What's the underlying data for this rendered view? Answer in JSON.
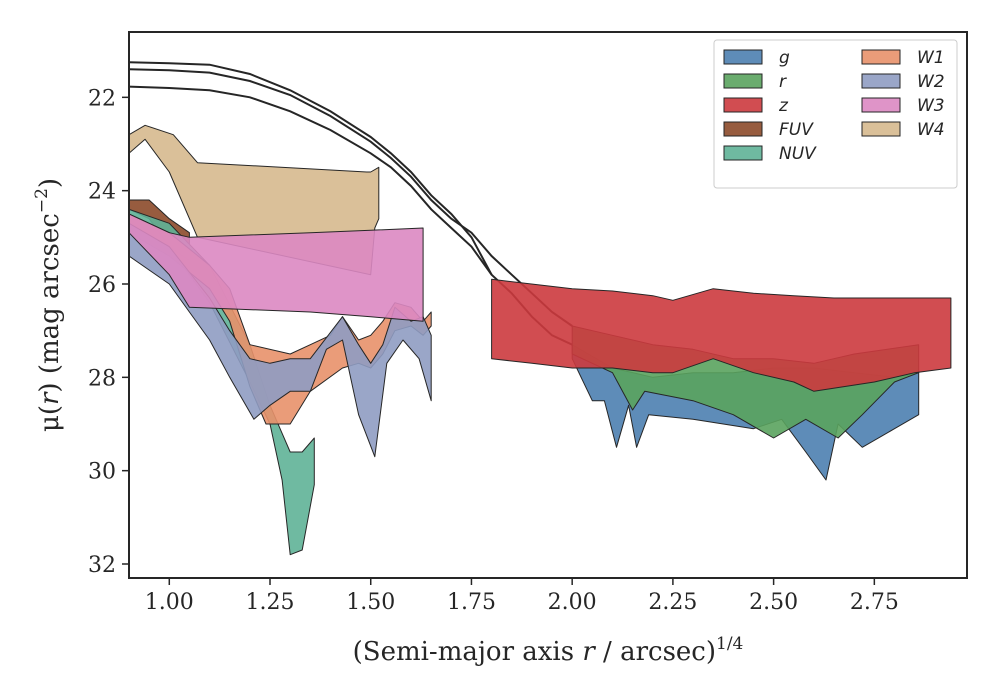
{
  "chart_data": {
    "type": "area",
    "xlabel": {
      "main": "(Semi-major axis ",
      "var": "r",
      "rest": " / arcsec)",
      "sup": "1/4"
    },
    "ylabel": {
      "pre": "μ(",
      "var": "r",
      "post": ") (mag arcsec",
      "sup": "−2",
      "end": ")"
    },
    "xlim": [
      0.9,
      2.98
    ],
    "ylim": [
      32.3,
      20.6
    ],
    "y_inverted": true,
    "xticks": [
      1.0,
      1.25,
      1.5,
      1.75,
      2.0,
      2.25,
      2.5,
      2.75
    ],
    "xtick_labels": [
      "1.00",
      "1.25",
      "1.50",
      "1.75",
      "2.00",
      "2.25",
      "2.50",
      "2.75"
    ],
    "yticks": [
      22,
      24,
      26,
      28,
      30,
      32
    ],
    "ytick_labels": [
      "22",
      "24",
      "26",
      "28",
      "30",
      "32"
    ],
    "legend_position": "top-right",
    "grid": false,
    "series": [
      {
        "name": "W4",
        "color": "#d6b98e",
        "upper": [
          [
            0.9,
            22.8
          ],
          [
            0.94,
            22.6
          ],
          [
            1.01,
            22.8
          ],
          [
            1.07,
            23.4
          ],
          [
            1.49,
            23.6
          ],
          [
            1.5,
            23.6
          ],
          [
            1.52,
            23.5
          ]
        ],
        "lower": [
          [
            0.9,
            23.2
          ],
          [
            0.94,
            22.9
          ],
          [
            1.0,
            23.6
          ],
          [
            1.07,
            25.0
          ],
          [
            1.5,
            25.8
          ],
          [
            1.51,
            24.8
          ],
          [
            1.52,
            24.6
          ]
        ]
      },
      {
        "name": "FUV",
        "color": "#8c4a2a",
        "upper": [
          [
            0.9,
            24.2
          ],
          [
            0.95,
            24.2
          ],
          [
            1.0,
            24.6
          ],
          [
            1.05,
            24.9
          ]
        ],
        "lower": [
          [
            0.9,
            24.4
          ],
          [
            0.95,
            24.6
          ],
          [
            1.0,
            25.2
          ],
          [
            1.05,
            25.5
          ]
        ]
      },
      {
        "name": "NUV",
        "color": "#5fb397",
        "upper": [
          [
            0.9,
            24.4
          ],
          [
            1.0,
            24.7
          ],
          [
            1.1,
            25.6
          ],
          [
            1.2,
            27.3
          ],
          [
            1.25,
            28.6
          ],
          [
            1.28,
            29.2
          ],
          [
            1.3,
            29.6
          ],
          [
            1.33,
            29.6
          ],
          [
            1.36,
            29.3
          ]
        ],
        "lower": [
          [
            0.9,
            24.7
          ],
          [
            1.0,
            25.2
          ],
          [
            1.1,
            26.4
          ],
          [
            1.2,
            28.1
          ],
          [
            1.25,
            29.0
          ],
          [
            1.28,
            30.2
          ],
          [
            1.3,
            31.8
          ],
          [
            1.33,
            31.7
          ],
          [
            1.36,
            30.3
          ]
        ]
      },
      {
        "name": "W1",
        "color": "#e8916a",
        "upper": [
          [
            0.9,
            24.5
          ],
          [
            1.0,
            24.9
          ],
          [
            1.1,
            25.6
          ],
          [
            1.15,
            26.1
          ],
          [
            1.2,
            27.3
          ],
          [
            1.3,
            27.5
          ],
          [
            1.35,
            27.3
          ],
          [
            1.4,
            27.1
          ],
          [
            1.43,
            26.7
          ],
          [
            1.47,
            27.2
          ],
          [
            1.5,
            27.1
          ],
          [
            1.53,
            26.8
          ],
          [
            1.56,
            26.4
          ],
          [
            1.6,
            26.5
          ],
          [
            1.63,
            26.8
          ],
          [
            1.65,
            26.6
          ]
        ],
        "lower": [
          [
            0.9,
            24.9
          ],
          [
            1.0,
            25.4
          ],
          [
            1.1,
            26.1
          ],
          [
            1.15,
            26.8
          ],
          [
            1.2,
            28.2
          ],
          [
            1.24,
            29.0
          ],
          [
            1.3,
            29.0
          ],
          [
            1.35,
            28.3
          ],
          [
            1.43,
            27.8
          ],
          [
            1.47,
            27.7
          ],
          [
            1.5,
            27.8
          ],
          [
            1.53,
            27.5
          ],
          [
            1.56,
            27.0
          ],
          [
            1.6,
            26.9
          ],
          [
            1.63,
            27.1
          ],
          [
            1.65,
            26.9
          ]
        ]
      },
      {
        "name": "W2",
        "color": "#8f9cc2",
        "upper": [
          [
            0.9,
            24.7
          ],
          [
            1.0,
            25.2
          ],
          [
            1.1,
            26.3
          ],
          [
            1.15,
            27.0
          ],
          [
            1.2,
            27.6
          ],
          [
            1.25,
            27.7
          ],
          [
            1.3,
            27.6
          ],
          [
            1.35,
            27.6
          ],
          [
            1.43,
            26.7
          ],
          [
            1.47,
            27.3
          ],
          [
            1.5,
            27.7
          ],
          [
            1.53,
            27.3
          ],
          [
            1.56,
            26.5
          ],
          [
            1.6,
            26.8
          ],
          [
            1.63,
            26.7
          ],
          [
            1.65,
            27.1
          ]
        ],
        "lower": [
          [
            0.9,
            25.4
          ],
          [
            0.95,
            25.7
          ],
          [
            1.0,
            26.0
          ],
          [
            1.05,
            26.6
          ],
          [
            1.1,
            27.2
          ],
          [
            1.15,
            28.0
          ],
          [
            1.21,
            28.9
          ],
          [
            1.25,
            28.6
          ],
          [
            1.3,
            28.3
          ],
          [
            1.35,
            28.3
          ],
          [
            1.39,
            27.4
          ],
          [
            1.43,
            27.2
          ],
          [
            1.47,
            28.8
          ],
          [
            1.51,
            29.7
          ],
          [
            1.54,
            27.7
          ],
          [
            1.58,
            27.2
          ],
          [
            1.62,
            27.6
          ],
          [
            1.65,
            28.5
          ]
        ]
      },
      {
        "name": "W3",
        "color": "#dc88c2",
        "upper": [
          [
            0.9,
            24.5
          ],
          [
            1.0,
            24.9
          ],
          [
            1.05,
            25.0
          ],
          [
            1.35,
            24.9
          ],
          [
            1.5,
            24.85
          ],
          [
            1.63,
            24.8
          ]
        ],
        "lower": [
          [
            0.9,
            24.9
          ],
          [
            1.0,
            25.8
          ],
          [
            1.05,
            26.5
          ],
          [
            1.35,
            26.6
          ],
          [
            1.5,
            26.7
          ],
          [
            1.63,
            26.8
          ]
        ]
      },
      {
        "name": "g",
        "color": "#4c7fb0",
        "curve": [
          [
            0.9,
            21.77
          ],
          [
            1.0,
            21.8
          ],
          [
            1.1,
            21.85
          ],
          [
            1.2,
            22.0
          ],
          [
            1.3,
            22.3
          ],
          [
            1.4,
            22.7
          ],
          [
            1.5,
            23.2
          ],
          [
            1.55,
            23.5
          ],
          [
            1.6,
            23.9
          ],
          [
            1.65,
            24.4
          ],
          [
            1.7,
            24.8
          ],
          [
            1.75,
            25.2
          ],
          [
            1.8,
            25.8
          ],
          [
            1.85,
            26.2
          ],
          [
            1.9,
            26.7
          ],
          [
            1.95,
            27.1
          ],
          [
            2.0,
            27.3
          ]
        ],
        "upper": [
          [
            2.0,
            27.3
          ],
          [
            2.1,
            27.8
          ],
          [
            2.2,
            28.0
          ],
          [
            2.3,
            27.9
          ],
          [
            2.4,
            27.9
          ],
          [
            2.5,
            27.8
          ],
          [
            2.6,
            27.8
          ],
          [
            2.7,
            27.9
          ],
          [
            2.8,
            28.0
          ],
          [
            2.86,
            27.9
          ]
        ],
        "lower": [
          [
            2.0,
            27.6
          ],
          [
            2.05,
            28.5
          ],
          [
            2.08,
            28.5
          ],
          [
            2.11,
            29.5
          ],
          [
            2.14,
            28.6
          ],
          [
            2.16,
            29.5
          ],
          [
            2.19,
            28.8
          ],
          [
            2.3,
            28.9
          ],
          [
            2.45,
            29.1
          ],
          [
            2.52,
            28.9
          ],
          [
            2.58,
            29.6
          ],
          [
            2.63,
            30.2
          ],
          [
            2.66,
            29.0
          ],
          [
            2.72,
            29.5
          ],
          [
            2.8,
            29.1
          ],
          [
            2.86,
            28.8
          ]
        ]
      },
      {
        "name": "r",
        "color": "#5aa35e",
        "curve": [
          [
            0.9,
            21.4
          ],
          [
            1.0,
            21.42
          ],
          [
            1.1,
            21.47
          ],
          [
            1.2,
            21.65
          ],
          [
            1.3,
            21.95
          ],
          [
            1.4,
            22.4
          ],
          [
            1.5,
            22.95
          ],
          [
            1.55,
            23.3
          ],
          [
            1.6,
            23.7
          ],
          [
            1.65,
            24.2
          ],
          [
            1.7,
            24.6
          ],
          [
            1.75,
            24.9
          ],
          [
            1.8,
            25.4
          ],
          [
            1.85,
            25.8
          ],
          [
            1.9,
            26.2
          ],
          [
            1.95,
            26.6
          ],
          [
            2.0,
            26.9
          ]
        ],
        "upper": [
          [
            2.0,
            26.9
          ],
          [
            2.1,
            27.1
          ],
          [
            2.2,
            27.3
          ],
          [
            2.3,
            27.4
          ],
          [
            2.4,
            27.6
          ],
          [
            2.5,
            27.6
          ],
          [
            2.6,
            27.7
          ],
          [
            2.7,
            27.5
          ],
          [
            2.86,
            27.3
          ]
        ],
        "lower": [
          [
            2.0,
            27.5
          ],
          [
            2.1,
            27.9
          ],
          [
            2.15,
            28.7
          ],
          [
            2.18,
            28.3
          ],
          [
            2.3,
            28.5
          ],
          [
            2.4,
            28.8
          ],
          [
            2.5,
            29.3
          ],
          [
            2.58,
            28.9
          ],
          [
            2.66,
            29.3
          ],
          [
            2.72,
            28.8
          ],
          [
            2.8,
            28.1
          ],
          [
            2.86,
            27.9
          ]
        ]
      },
      {
        "name": "z",
        "color": "#cc3a3e",
        "curve": [
          [
            0.9,
            21.25
          ],
          [
            1.0,
            21.27
          ],
          [
            1.1,
            21.3
          ],
          [
            1.2,
            21.5
          ],
          [
            1.3,
            21.85
          ],
          [
            1.4,
            22.3
          ],
          [
            1.5,
            22.85
          ],
          [
            1.55,
            23.2
          ],
          [
            1.6,
            23.6
          ],
          [
            1.65,
            24.1
          ],
          [
            1.7,
            24.5
          ],
          [
            1.75,
            25.0
          ],
          [
            1.8,
            25.8
          ]
        ],
        "upper": [
          [
            1.8,
            25.9
          ],
          [
            2.0,
            26.1
          ],
          [
            2.1,
            26.15
          ],
          [
            2.2,
            26.25
          ],
          [
            2.25,
            26.35
          ],
          [
            2.35,
            26.1
          ],
          [
            2.45,
            26.2
          ],
          [
            2.55,
            26.25
          ],
          [
            2.65,
            26.3
          ],
          [
            2.8,
            26.3
          ],
          [
            2.94,
            26.3
          ]
        ],
        "lower": [
          [
            1.8,
            27.6
          ],
          [
            1.9,
            27.7
          ],
          [
            2.0,
            27.8
          ],
          [
            2.1,
            27.8
          ],
          [
            2.2,
            27.9
          ],
          [
            2.25,
            27.9
          ],
          [
            2.35,
            27.6
          ],
          [
            2.45,
            27.9
          ],
          [
            2.55,
            28.1
          ],
          [
            2.6,
            28.3
          ],
          [
            2.75,
            28.1
          ],
          [
            2.85,
            27.9
          ],
          [
            2.94,
            27.8
          ]
        ]
      }
    ]
  },
  "legend": {
    "col1": [
      {
        "name": "g",
        "color": "#4c7fb0"
      },
      {
        "name": "r",
        "color": "#5aa35e"
      },
      {
        "name": "z",
        "color": "#cc3a3e"
      },
      {
        "name": "FUV",
        "color": "#8c4a2a"
      },
      {
        "name": "NUV",
        "color": "#5fb397"
      }
    ],
    "col2": [
      {
        "name": "W1",
        "color": "#e8916a"
      },
      {
        "name": "W2",
        "color": "#8f9cc2"
      },
      {
        "name": "W3",
        "color": "#dc88c2"
      },
      {
        "name": "W4",
        "color": "#d6b98e"
      }
    ]
  }
}
